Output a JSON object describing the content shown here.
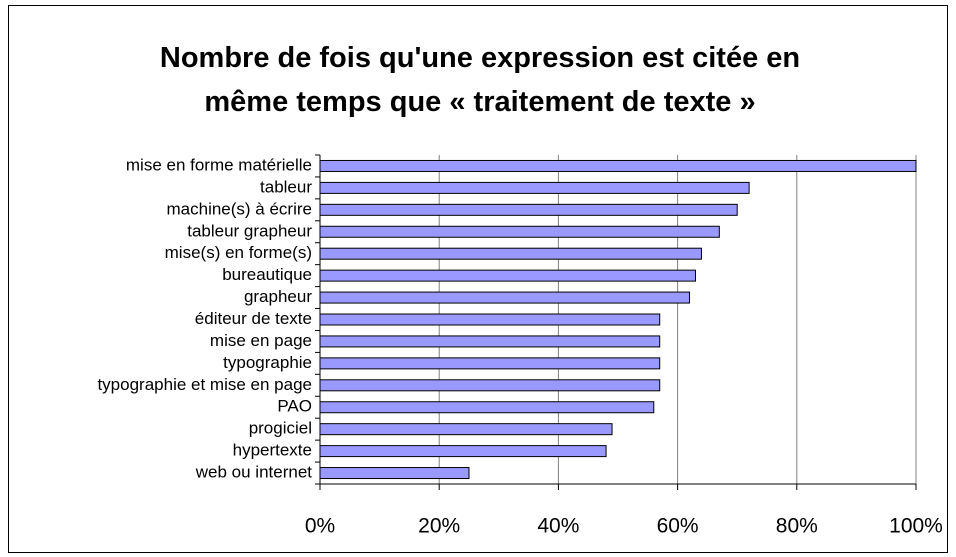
{
  "chart_data": {
    "type": "barh",
    "title": "Nombre de fois qu'une expression est citée en même temps que « traitement de texte »",
    "categories": [
      "mise en forme matérielle",
      "tableur",
      "machine(s) à écrire",
      "tableur grapheur",
      "mise(s) en forme(s)",
      "bureautique",
      "grapheur",
      "éditeur de texte",
      "mise en page",
      "typographie",
      "typographie et mise en page",
      "PAO",
      "progiciel",
      "hypertexte",
      "web ou internet"
    ],
    "values": [
      100,
      72,
      70,
      67,
      64,
      63,
      62,
      57,
      57,
      57,
      57,
      56,
      49,
      48,
      25
    ],
    "color": "#9999ff",
    "xlim": [
      0,
      100
    ],
    "xticks": [
      {
        "value": 0,
        "label": "0%"
      },
      {
        "value": 20,
        "label": "20%"
      },
      {
        "value": 40,
        "label": "40%"
      },
      {
        "value": 60,
        "label": "60%"
      },
      {
        "value": 80,
        "label": "80%"
      },
      {
        "value": 100,
        "label": "100%"
      }
    ],
    "grid": true
  }
}
